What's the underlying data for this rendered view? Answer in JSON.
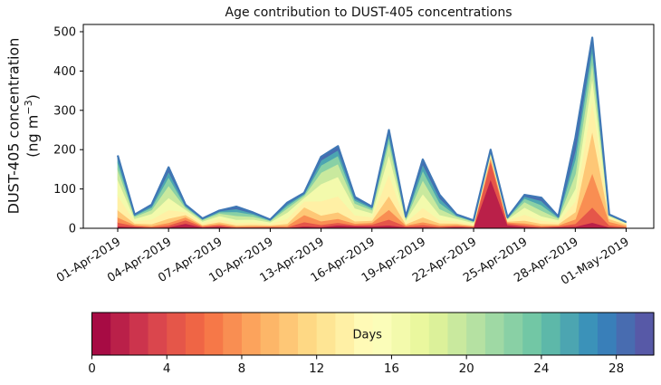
{
  "title": "Age contribution to DUST-405 concentrations",
  "y_axis": {
    "label_line1": "DUST-405 concentration",
    "label_line2_pre": "(ng m",
    "label_sup": "−3",
    "label_post": ")",
    "ticks": [
      0,
      100,
      200,
      300,
      400,
      500
    ],
    "min": 0,
    "max": 500
  },
  "x_axis": {
    "tick_labels": [
      "01-Apr-2019",
      "04-Apr-2019",
      "07-Apr-2019",
      "10-Apr-2019",
      "13-Apr-2019",
      "16-Apr-2019",
      "19-Apr-2019",
      "22-Apr-2019",
      "25-Apr-2019",
      "28-Apr-2019",
      "01-May-2019"
    ]
  },
  "colorbar": {
    "label": "Days",
    "ticks": [
      0,
      4,
      8,
      12,
      16,
      20,
      24,
      28
    ],
    "min": 0,
    "max": 30,
    "n_segments": 30
  },
  "colormap": {
    "name": "Spectral",
    "anchors": [
      "#9e0142",
      "#d53e4f",
      "#f46d43",
      "#fdae61",
      "#fee08b",
      "#ffffbf",
      "#e6f598",
      "#abdda4",
      "#66c2a5",
      "#3288bd",
      "#5e4fa2"
    ]
  },
  "chart_data": {
    "type": "area",
    "stacked": true,
    "title": "Age contribution to DUST-405 concentrations",
    "xlabel": "",
    "ylabel": "DUST-405 concentration (ng m-3)",
    "ylim": [
      0,
      500
    ],
    "grid": false,
    "legend": "colorbar (Days, 0-30)",
    "dates": [
      "01-Apr-2019",
      "02-Apr-2019",
      "03-Apr-2019",
      "04-Apr-2019",
      "05-Apr-2019",
      "06-Apr-2019",
      "07-Apr-2019",
      "08-Apr-2019",
      "09-Apr-2019",
      "10-Apr-2019",
      "11-Apr-2019",
      "12-Apr-2019",
      "13-Apr-2019",
      "14-Apr-2019",
      "15-Apr-2019",
      "16-Apr-2019",
      "17-Apr-2019",
      "18-Apr-2019",
      "19-Apr-2019",
      "20-Apr-2019",
      "21-Apr-2019",
      "22-Apr-2019",
      "23-Apr-2019",
      "24-Apr-2019",
      "25-Apr-2019",
      "26-Apr-2019",
      "27-Apr-2019",
      "28-Apr-2019",
      "29-Apr-2019",
      "30-Apr-2019",
      "01-May-2019"
    ],
    "totals": [
      185,
      35,
      60,
      155,
      60,
      25,
      45,
      55,
      40,
      22,
      65,
      90,
      182,
      209,
      80,
      55,
      250,
      30,
      175,
      85,
      35,
      20,
      200,
      28,
      85,
      78,
      30,
      230,
      485,
      35,
      16
    ],
    "age_bins_days": [
      "0-3",
      "3-6",
      "6-9",
      "9-12",
      "12-15",
      "15-18",
      "18-21",
      "21-24",
      "24-27",
      "27-30"
    ],
    "bins_per_day": [
      [
        5.6,
        9.3,
        13,
        18.5,
        37,
        40.7,
        25.9,
        16.7,
        11.1,
        7.4
      ],
      [
        3.5,
        2.8,
        2.8,
        3.5,
        5.6,
        6.3,
        4.9,
        2.8,
        1.8,
        1.1
      ],
      [
        1.2,
        1.8,
        3,
        4.8,
        12,
        14.4,
        9.6,
        6,
        4.2,
        3
      ],
      [
        3.1,
        4.7,
        6.2,
        10.9,
        21.7,
        31,
        31,
        21.7,
        14,
        10.9
      ],
      [
        12,
        9,
        7.2,
        6,
        7.2,
        6,
        4.8,
        3.6,
        2.4,
        1.8
      ],
      [
        2.5,
        2,
        2,
        2.5,
        4,
        4.5,
        3.5,
        2,
        1.3,
        0.8
      ],
      [
        4.5,
        3.6,
        3.6,
        4.5,
        7.2,
        8.1,
        6.3,
        3.6,
        2.3,
        1.4
      ],
      [
        1.1,
        1.7,
        2.2,
        3.3,
        5.5,
        8.3,
        9.9,
        9.9,
        7.7,
        5.5
      ],
      [
        1.5,
        2,
        2.5,
        3.5,
        6,
        7,
        7,
        5.5,
        3,
        2
      ],
      [
        2.2,
        1.8,
        1.8,
        2.2,
        3.5,
        4,
        3.1,
        1.8,
        1.1,
        0.7
      ],
      [
        1.3,
        2,
        3.3,
        5.2,
        13,
        15.6,
        10.4,
        6.5,
        4.6,
        3.3
      ],
      [
        5.4,
        10.8,
        18,
        19.8,
        14.4,
        9,
        5.4,
        3.6,
        1.8,
        1.8
      ],
      [
        3.6,
        5.5,
        9.1,
        14.6,
        36.4,
        43.7,
        29.1,
        18.2,
        12.7,
        9.1
      ],
      [
        8,
        6.2,
        10.3,
        16.4,
        41,
        49.2,
        32.8,
        20.5,
        14.4,
        10.3
      ],
      [
        6,
        2.3,
        3.8,
        6,
        15,
        18,
        12,
        7.5,
        5.3,
        3.8
      ],
      [
        5.5,
        4.4,
        4.4,
        5.5,
        8.8,
        9.9,
        7.7,
        4.4,
        2.8,
        1.7
      ],
      [
        7.5,
        15,
        25,
        35,
        55,
        50,
        30,
        15,
        10,
        7.5
      ],
      [
        3,
        2.4,
        2.4,
        3,
        4.8,
        5.4,
        4.2,
        2.4,
        1.5,
        0.9
      ],
      [
        3.5,
        5.3,
        7,
        12.3,
        24.5,
        35,
        35,
        24.5,
        15.8,
        12.3
      ],
      [
        1.7,
        2.6,
        3.4,
        5.1,
        8.5,
        12.8,
        15.3,
        15.3,
        11.9,
        8.5
      ],
      [
        3.5,
        2.8,
        2.8,
        3.5,
        5.6,
        6.3,
        4.9,
        2.8,
        1.8,
        1.1
      ],
      [
        2,
        1.6,
        1.6,
        2,
        3.2,
        3.6,
        2.8,
        1.6,
        1,
        0.6
      ],
      [
        125,
        45,
        8,
        5,
        4,
        3.5,
        2.5,
        2.5,
        2.5,
        2
      ],
      [
        8.4,
        4.2,
        2.8,
        2.2,
        2.8,
        2.5,
        2.2,
        1.4,
        0.8,
        0.6
      ],
      [
        4,
        4,
        5,
        7,
        15,
        18,
        14,
        9,
        5.5,
        3.5
      ],
      [
        1.6,
        2.3,
        3.1,
        4.7,
        7.8,
        11.7,
        14,
        14,
        10.9,
        7.8
      ],
      [
        3,
        2.4,
        2.4,
        3,
        4.8,
        5.4,
        4.2,
        2.4,
        1.5,
        0.9
      ],
      [
        4.6,
        6.9,
        11.5,
        18.4,
        27.6,
        32.2,
        36.8,
        36.8,
        23,
        32.2
      ],
      [
        14.6,
        38.8,
        87.3,
        106.7,
        77.6,
        58.2,
        38.8,
        29.1,
        19.4,
        14.6
      ],
      [
        2.8,
        5.3,
        8.8,
        7,
        4.2,
        2.8,
        1.8,
        1.4,
        0.7,
        0.4
      ],
      [
        1,
        1.9,
        3.2,
        3.5,
        2.6,
        1.6,
        1,
        0.6,
        0.3,
        0.3
      ]
    ]
  }
}
